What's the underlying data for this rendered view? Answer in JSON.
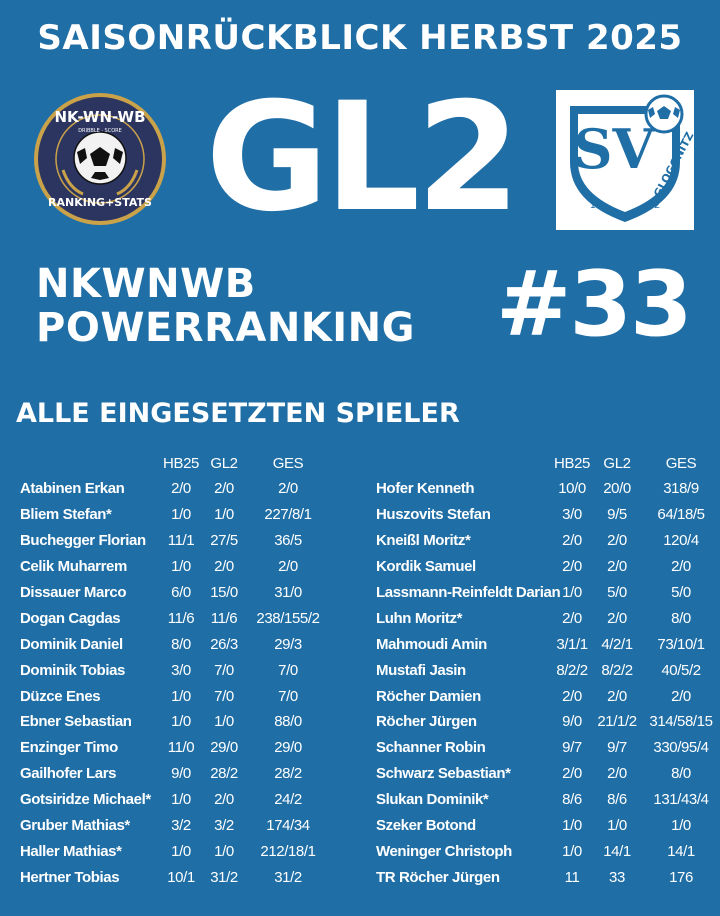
{
  "header": {
    "title": "SAISONRÜCKBLICK HERBST 2025",
    "league": "GL2",
    "ranking_label_line1": "NKWNWB",
    "ranking_label_line2": "POWERRANKING",
    "rank": "#33"
  },
  "logo_left": {
    "top_text": "NK-WN-WB",
    "mid_text": "DRIBBLE · SCORE",
    "bottom_text": "RANKING+STATS"
  },
  "logo_right": {
    "letters": "SV",
    "club": "GLOGGNITZ",
    "year_a": "19",
    "year_b": "22"
  },
  "section_title": "ALLE EINGESETZTEN SPIELER",
  "columns": [
    "HB25",
    "GL2",
    "GES"
  ],
  "players_left": [
    [
      "Atabinen Erkan",
      "2/0",
      "2/0",
      "2/0"
    ],
    [
      "Bliem Stefan*",
      "1/0",
      "1/0",
      "227/8/1"
    ],
    [
      "Buchegger Florian",
      "11/1",
      "27/5",
      "36/5"
    ],
    [
      "Celik Muharrem",
      "1/0",
      "2/0",
      "2/0"
    ],
    [
      "Dissauer Marco",
      "6/0",
      "15/0",
      "31/0"
    ],
    [
      "Dogan Cagdas",
      "11/6",
      "11/6",
      "238/155/2"
    ],
    [
      "Dominik Daniel",
      "8/0",
      "26/3",
      "29/3"
    ],
    [
      "Dominik Tobias",
      "3/0",
      "7/0",
      "7/0"
    ],
    [
      "Düzce Enes",
      "1/0",
      "7/0",
      "7/0"
    ],
    [
      "Ebner Sebastian",
      "1/0",
      "1/0",
      "88/0"
    ],
    [
      "Enzinger Timo",
      "11/0",
      "29/0",
      "29/0"
    ],
    [
      "Gailhofer Lars",
      "9/0",
      "28/2",
      "28/2"
    ],
    [
      "Gotsiridze Michael*",
      "1/0",
      "2/0",
      "24/2"
    ],
    [
      "Gruber Mathias*",
      "3/2",
      "3/2",
      "174/34"
    ],
    [
      "Haller Mathias*",
      "1/0",
      "1/0",
      "212/18/1"
    ],
    [
      "Hertner Tobias",
      "10/1",
      "31/2",
      "31/2"
    ]
  ],
  "players_right": [
    [
      "Hofer Kenneth",
      "10/0",
      "20/0",
      "318/9"
    ],
    [
      "Huszovits Stefan",
      "3/0",
      "9/5",
      "64/18/5"
    ],
    [
      "Kneißl Moritz*",
      "2/0",
      "2/0",
      "120/4"
    ],
    [
      "Kordik Samuel",
      "2/0",
      "2/0",
      "2/0"
    ],
    [
      "Lassmann-Reinfeldt Darian",
      "1/0",
      "5/0",
      "5/0"
    ],
    [
      "Luhn Moritz*",
      "2/0",
      "2/0",
      "8/0"
    ],
    [
      "Mahmoudi Amin",
      "3/1/1",
      "4/2/1",
      "73/10/1"
    ],
    [
      "Mustafi Jasin",
      "8/2/2",
      "8/2/2",
      "40/5/2"
    ],
    [
      "Röcher Damien",
      "2/0",
      "2/0",
      "2/0"
    ],
    [
      "Röcher Jürgen",
      "9/0",
      "21/1/2",
      "314/58/15"
    ],
    [
      "Schanner Robin",
      "9/7",
      "9/7",
      "330/95/4"
    ],
    [
      "Schwarz Sebastian*",
      "2/0",
      "2/0",
      "8/0"
    ],
    [
      "Slukan Dominik*",
      "8/6",
      "8/6",
      "131/43/4"
    ],
    [
      "Szeker Botond",
      "1/0",
      "1/0",
      "1/0"
    ],
    [
      "Weninger Christoph",
      "1/0",
      "14/1",
      "14/1"
    ],
    [
      "TR Röcher Jürgen",
      "11",
      "33",
      "176"
    ]
  ],
  "colors": {
    "background": "#1f6ea6",
    "logo_navy": "#2b3560",
    "logo_gold": "#c9a24a",
    "club_blue": "#1f6ea6"
  }
}
